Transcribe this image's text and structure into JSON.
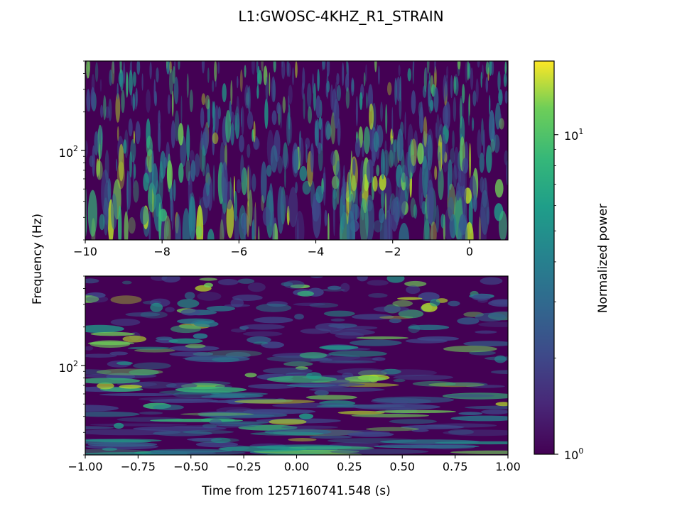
{
  "title": "L1:GWOSC-4KHZ_R1_STRAIN",
  "colors": {
    "viridis_dark": "#440154",
    "viridis_mid": "#21918c",
    "viridis_green": "#5ec962",
    "viridis_yellow": "#fde725"
  },
  "chart_data": [
    {
      "type": "heatmap",
      "panel": "top",
      "description_of_values": "Q-transform spectrogram (normalized power vs time and frequency)",
      "xlim": [
        -10,
        1
      ],
      "x_ticks": [
        -10,
        -8,
        -6,
        -4,
        -2,
        0
      ],
      "x_tick_labels": [
        "−10",
        "−8",
        "−6",
        "−4",
        "−2",
        "0"
      ],
      "y_scale": "log",
      "ylim": [
        20,
        500
      ],
      "y_tick_labels": [
        "10",
        "2"
      ],
      "y_major_tick": 100,
      "ylabel": "Frequency (Hz)",
      "color_scale": "viridis (log)",
      "grid": false
    },
    {
      "type": "heatmap",
      "panel": "bottom",
      "xlim": [
        -1,
        1
      ],
      "x_ticks": [
        -1.0,
        -0.75,
        -0.5,
        -0.25,
        0.0,
        0.25,
        0.5,
        0.75,
        1.0
      ],
      "x_tick_labels": [
        "−1.00",
        "−0.75",
        "−0.50",
        "−0.25",
        "0.00",
        "0.25",
        "0.50",
        "0.75",
        "1.00"
      ],
      "y_scale": "log",
      "ylim": [
        20,
        500
      ],
      "y_tick_labels": [
        "10",
        "2"
      ],
      "y_major_tick": 100,
      "xlabel": "Time from 1257160741.548 (s)",
      "color_scale": "viridis (log)",
      "grid": false
    }
  ],
  "colorbar": {
    "label": "Normalized power",
    "scale": "log",
    "range": [
      1,
      17
    ],
    "tick_labels": [
      {
        "base": "10",
        "exp": "0",
        "value": 1
      },
      {
        "base": "10",
        "exp": "1",
        "value": 10
      }
    ],
    "colormap": "viridis"
  }
}
